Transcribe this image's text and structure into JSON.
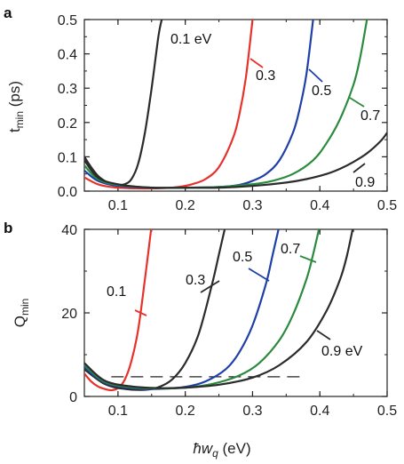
{
  "chart_data": [
    {
      "type": "line",
      "panel": "a",
      "ylabel": "t_min (ps)",
      "ylabel_main": "t",
      "ylabel_sub": "min",
      "ylabel_unit": "(ps)",
      "xlim": [
        0.05,
        0.5
      ],
      "ylim": [
        0,
        0.5
      ],
      "xticks": [
        "0.1",
        "0.2",
        "0.3",
        "0.4",
        "0.5"
      ],
      "yticks": [
        "0.0",
        "0.1",
        "0.2",
        "0.3",
        "0.4",
        "0.5"
      ],
      "series": [
        {
          "name": "0.1 eV",
          "color": "#2b2b2b",
          "x": [
            0.05,
            0.06,
            0.07,
            0.08,
            0.09,
            0.1,
            0.11,
            0.12,
            0.13,
            0.14,
            0.15,
            0.16,
            0.165
          ],
          "y": [
            0.1,
            0.07,
            0.045,
            0.03,
            0.02,
            0.018,
            0.02,
            0.035,
            0.08,
            0.17,
            0.3,
            0.45,
            0.5
          ]
        },
        {
          "name": "0.3",
          "color": "#e8312a",
          "x": [
            0.05,
            0.07,
            0.09,
            0.11,
            0.13,
            0.15,
            0.17,
            0.19,
            0.21,
            0.23,
            0.25,
            0.27,
            0.28,
            0.29,
            0.3
          ],
          "y": [
            0.04,
            0.02,
            0.012,
            0.009,
            0.008,
            0.008,
            0.009,
            0.012,
            0.02,
            0.035,
            0.07,
            0.15,
            0.22,
            0.33,
            0.5
          ]
        },
        {
          "name": "0.5",
          "color": "#1f3fa8",
          "x": [
            0.05,
            0.07,
            0.1,
            0.15,
            0.2,
            0.25,
            0.28,
            0.3,
            0.32,
            0.34,
            0.36,
            0.37,
            0.38,
            0.39
          ],
          "y": [
            0.06,
            0.03,
            0.015,
            0.01,
            0.01,
            0.012,
            0.018,
            0.03,
            0.05,
            0.09,
            0.17,
            0.24,
            0.34,
            0.5
          ]
        },
        {
          "name": "0.7",
          "color": "#2a8a3e",
          "x": [
            0.05,
            0.07,
            0.1,
            0.15,
            0.2,
            0.25,
            0.3,
            0.33,
            0.36,
            0.39,
            0.41,
            0.43,
            0.45,
            0.46,
            0.47
          ],
          "y": [
            0.075,
            0.035,
            0.018,
            0.01,
            0.01,
            0.012,
            0.02,
            0.03,
            0.05,
            0.09,
            0.14,
            0.21,
            0.31,
            0.39,
            0.5
          ]
        },
        {
          "name": "0.9",
          "color": "#2b2b2b",
          "x": [
            0.05,
            0.07,
            0.1,
            0.15,
            0.2,
            0.25,
            0.3,
            0.35,
            0.38,
            0.41,
            0.43,
            0.45,
            0.47,
            0.49,
            0.5
          ],
          "y": [
            0.09,
            0.04,
            0.02,
            0.01,
            0.01,
            0.01,
            0.015,
            0.025,
            0.035,
            0.05,
            0.065,
            0.085,
            0.11,
            0.145,
            0.17
          ]
        }
      ],
      "labels": [
        {
          "text": "0.1 eV"
        },
        {
          "text": "0.3"
        },
        {
          "text": "0.5"
        },
        {
          "text": "0.7"
        },
        {
          "text": "0.9"
        }
      ]
    },
    {
      "type": "line",
      "panel": "b",
      "ylabel": "Q_min",
      "ylabel_main": "Q",
      "ylabel_sub": "min",
      "xlabel": "ħw_q (eV)",
      "xlabel_parts": {
        "hbar": "ħ",
        "w": "w",
        "sub": "q",
        "unit": "(eV)"
      },
      "xlim": [
        0.05,
        0.5
      ],
      "ylim": [
        0,
        40
      ],
      "xticks": [
        "0.1",
        "0.2",
        "0.3",
        "0.4",
        "0.5"
      ],
      "yticks": [
        "0",
        "20",
        "40"
      ],
      "reference_line": {
        "y": 4.7,
        "style": "dashed"
      },
      "series": [
        {
          "name": "0.1",
          "color": "#e8312a",
          "x": [
            0.05,
            0.06,
            0.07,
            0.08,
            0.09,
            0.1,
            0.11,
            0.12,
            0.13,
            0.14,
            0.15
          ],
          "y": [
            5.5,
            3.6,
            2.4,
            1.8,
            1.5,
            2.0,
            4.0,
            8.5,
            16.0,
            28.0,
            41.0
          ]
        },
        {
          "name": "0.3",
          "color": "#2b2b2b",
          "x": [
            0.05,
            0.08,
            0.11,
            0.14,
            0.16,
            0.18,
            0.2,
            0.22,
            0.24,
            0.25,
            0.26
          ],
          "y": [
            6.5,
            3.0,
            1.8,
            1.6,
            2.2,
            4.0,
            8.0,
            15.0,
            27.0,
            34.0,
            41.0
          ]
        },
        {
          "name": "0.5",
          "color": "#1f3fa8",
          "x": [
            0.05,
            0.08,
            0.12,
            0.16,
            0.2,
            0.23,
            0.26,
            0.28,
            0.3,
            0.32,
            0.33,
            0.34
          ],
          "y": [
            7.0,
            3.3,
            2.0,
            1.8,
            2.3,
            3.6,
            6.5,
            10.5,
            17.0,
            27.0,
            34.0,
            41.0
          ]
        },
        {
          "name": "0.7",
          "color": "#2a8a3e",
          "x": [
            0.05,
            0.08,
            0.12,
            0.16,
            0.2,
            0.24,
            0.28,
            0.31,
            0.34,
            0.36,
            0.38,
            0.39,
            0.4
          ],
          "y": [
            7.5,
            3.5,
            2.2,
            1.9,
            2.1,
            3.0,
            5.0,
            8.0,
            13.5,
            19.5,
            28.0,
            34.0,
            41.0
          ]
        },
        {
          "name": "0.9 eV",
          "color": "#2b2b2b",
          "x": [
            0.05,
            0.08,
            0.12,
            0.16,
            0.2,
            0.25,
            0.3,
            0.34,
            0.38,
            0.41,
            0.43,
            0.44,
            0.45
          ],
          "y": [
            8.0,
            3.8,
            2.4,
            2.0,
            2.1,
            2.8,
            4.5,
            7.5,
            13.0,
            20.5,
            28.0,
            33.5,
            41.0
          ]
        }
      ],
      "labels": [
        {
          "text": "0.1"
        },
        {
          "text": "0.3"
        },
        {
          "text": "0.5"
        },
        {
          "text": "0.7"
        },
        {
          "text": "0.9 eV"
        }
      ]
    }
  ]
}
